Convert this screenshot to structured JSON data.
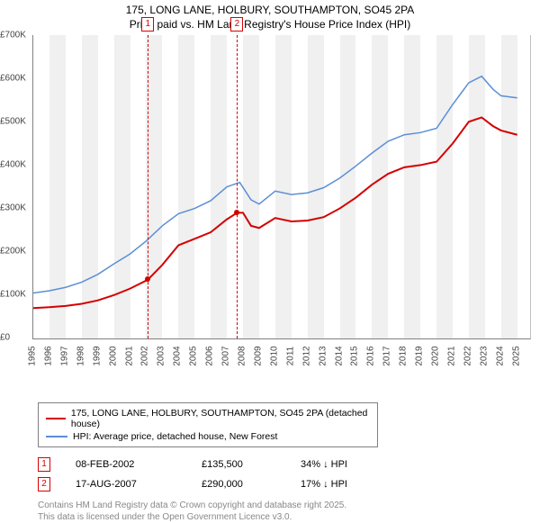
{
  "title_line1": "175, LONG LANE, HOLBURY, SOUTHAMPTON, SO45 2PA",
  "title_line2": "Price paid vs. HM Land Registry's House Price Index (HPI)",
  "chart": {
    "type": "line",
    "ylim": [
      0,
      700000
    ],
    "ytick_step": 100000,
    "yticks": [
      "£0",
      "£100K",
      "£200K",
      "£300K",
      "£400K",
      "£500K",
      "£600K",
      "£700K"
    ],
    "xlim": [
      1995,
      2025.8
    ],
    "xticks": [
      1995,
      1996,
      1997,
      1998,
      1999,
      2000,
      2001,
      2002,
      2003,
      2004,
      2005,
      2006,
      2007,
      2008,
      2009,
      2010,
      2011,
      2012,
      2013,
      2014,
      2015,
      2016,
      2017,
      2018,
      2019,
      2020,
      2021,
      2022,
      2023,
      2024,
      2025
    ],
    "grid_band_color": "#f0f0f0",
    "background_color": "#ffffff",
    "axis_color": "#808080",
    "series": [
      {
        "name": "175, LONG LANE, HOLBURY, SOUTHAMPTON, SO45 2PA (detached house)",
        "color": "#d40000",
        "line_width": 2,
        "points": [
          [
            1995,
            70000
          ],
          [
            1996,
            72000
          ],
          [
            1997,
            75000
          ],
          [
            1998,
            80000
          ],
          [
            1999,
            88000
          ],
          [
            2000,
            100000
          ],
          [
            2001,
            115000
          ],
          [
            2002.1,
            135500
          ],
          [
            2003,
            170000
          ],
          [
            2004,
            215000
          ],
          [
            2005,
            230000
          ],
          [
            2006,
            245000
          ],
          [
            2007,
            275000
          ],
          [
            2007.63,
            290000
          ],
          [
            2008,
            290000
          ],
          [
            2008.5,
            260000
          ],
          [
            2009,
            255000
          ],
          [
            2010,
            278000
          ],
          [
            2011,
            270000
          ],
          [
            2012,
            272000
          ],
          [
            2013,
            280000
          ],
          [
            2014,
            300000
          ],
          [
            2015,
            325000
          ],
          [
            2016,
            355000
          ],
          [
            2017,
            380000
          ],
          [
            2018,
            395000
          ],
          [
            2019,
            400000
          ],
          [
            2020,
            408000
          ],
          [
            2021,
            450000
          ],
          [
            2022,
            500000
          ],
          [
            2022.8,
            510000
          ],
          [
            2023.5,
            490000
          ],
          [
            2024,
            480000
          ],
          [
            2025,
            470000
          ]
        ]
      },
      {
        "name": "HPI: Average price, detached house, New Forest",
        "color": "#5b8fd6",
        "line_width": 1.5,
        "points": [
          [
            1995,
            105000
          ],
          [
            1996,
            110000
          ],
          [
            1997,
            118000
          ],
          [
            1998,
            130000
          ],
          [
            1999,
            148000
          ],
          [
            2000,
            172000
          ],
          [
            2001,
            195000
          ],
          [
            2002,
            225000
          ],
          [
            2003,
            260000
          ],
          [
            2004,
            288000
          ],
          [
            2005,
            300000
          ],
          [
            2006,
            318000
          ],
          [
            2007,
            350000
          ],
          [
            2007.8,
            360000
          ],
          [
            2008.5,
            320000
          ],
          [
            2009,
            310000
          ],
          [
            2010,
            340000
          ],
          [
            2011,
            332000
          ],
          [
            2012,
            336000
          ],
          [
            2013,
            348000
          ],
          [
            2014,
            370000
          ],
          [
            2015,
            398000
          ],
          [
            2016,
            428000
          ],
          [
            2017,
            455000
          ],
          [
            2018,
            470000
          ],
          [
            2019,
            475000
          ],
          [
            2020,
            485000
          ],
          [
            2021,
            540000
          ],
          [
            2022,
            590000
          ],
          [
            2022.8,
            605000
          ],
          [
            2023.5,
            575000
          ],
          [
            2024,
            560000
          ],
          [
            2025,
            555000
          ]
        ]
      }
    ],
    "markers": [
      {
        "label": "1",
        "year": 2002.1,
        "price": 135500,
        "color": "#d40000"
      },
      {
        "label": "2",
        "year": 2007.63,
        "price": 290000,
        "color": "#d40000"
      }
    ]
  },
  "legend": {
    "items": [
      {
        "color": "#d40000",
        "label": "175, LONG LANE, HOLBURY, SOUTHAMPTON, SO45 2PA (detached house)"
      },
      {
        "color": "#5b8fd6",
        "label": "HPI: Average price, detached house, New Forest"
      }
    ]
  },
  "data_rows": [
    {
      "label": "1",
      "color": "#d40000",
      "date": "08-FEB-2002",
      "price": "£135,500",
      "pct": "34% ↓ HPI"
    },
    {
      "label": "2",
      "color": "#d40000",
      "date": "17-AUG-2007",
      "price": "£290,000",
      "pct": "17% ↓ HPI"
    }
  ],
  "footer_line1": "Contains HM Land Registry data © Crown copyright and database right 2025.",
  "footer_line2": "This data is licensed under the Open Government Licence v3.0."
}
